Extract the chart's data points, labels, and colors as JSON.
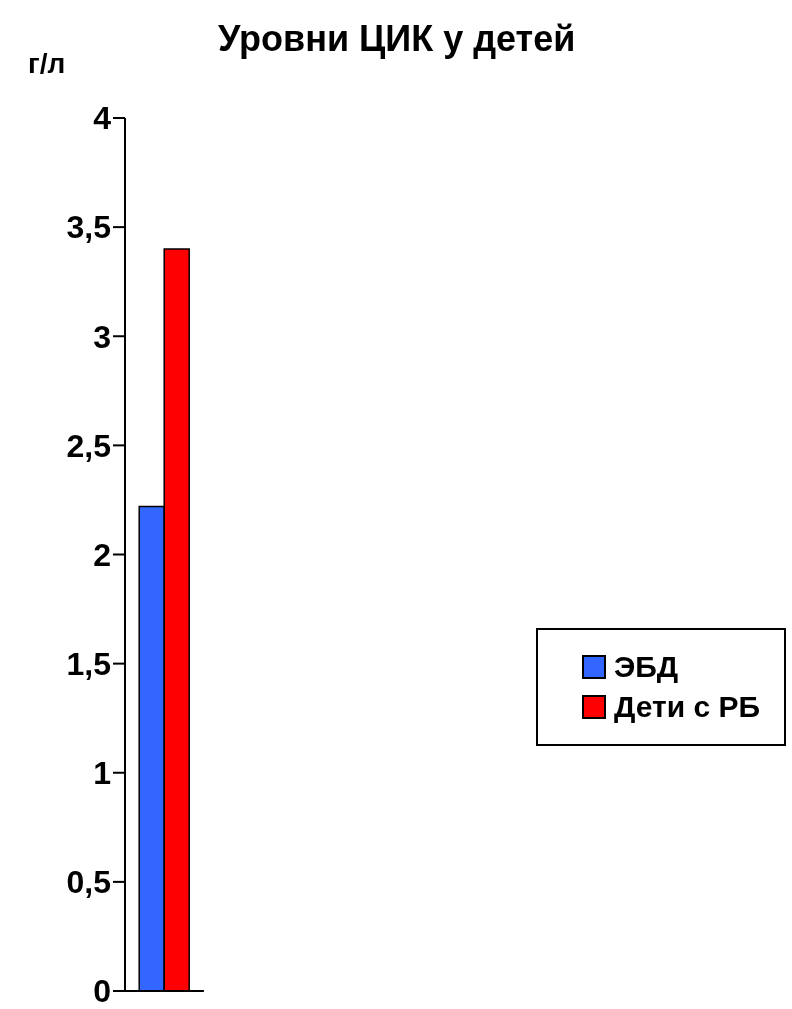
{
  "chart_data": {
    "type": "bar",
    "title": "Уровни ЦИК у детей",
    "ylabel": "г/л",
    "categories": [
      null
    ],
    "series": [
      {
        "name": "ЭБД",
        "color": "#3366ff",
        "values": [
          2.22
        ]
      },
      {
        "name": "Дети с РБ",
        "color": "#ff0000",
        "values": [
          3.4
        ]
      }
    ],
    "ylim": [
      0,
      4
    ],
    "yticks": [
      0,
      {
        "value": 0.5,
        "label": "0,5"
      },
      1,
      {
        "value": 1.5,
        "label": "1,5"
      },
      2,
      {
        "value": 2.5,
        "label": "2,5"
      },
      3,
      {
        "value": 3.5,
        "label": "3,5"
      },
      4
    ],
    "grid": false,
    "legend": "right"
  }
}
